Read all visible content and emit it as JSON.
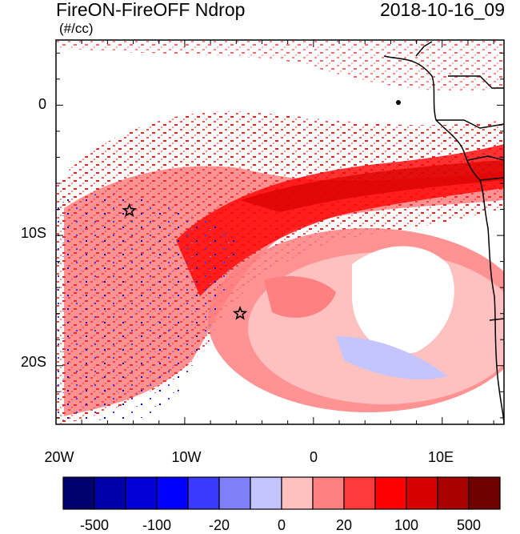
{
  "title_left": "FireON-FireOFF Ndrop",
  "title_right": "2018-10-16_09",
  "units": "(#/cc)",
  "map": {
    "lon_range": [
      -20,
      14.8
    ],
    "lat_range": [
      -24.5,
      5
    ],
    "y_ticks": [
      "0",
      "10S",
      "20S"
    ],
    "x_ticks": [
      "20W",
      "10W",
      "0",
      "10E"
    ],
    "markers": [
      {
        "name": "star-marker",
        "lon": -14.3,
        "lat": -8.1
      },
      {
        "name": "star-marker",
        "lon": -5.7,
        "lat": -16.0
      }
    ]
  },
  "colorbar": {
    "colors": [
      "#00006f",
      "#0000a8",
      "#0000d6",
      "#0000ff",
      "#3a3aff",
      "#8080f8",
      "#c4c4ff",
      "#ffc0c0",
      "#ff8080",
      "#ff3a3a",
      "#ff0000",
      "#d60000",
      "#a80000",
      "#700000"
    ],
    "labels": [
      "-500",
      "-100",
      "-20",
      "0",
      "20",
      "100",
      "500"
    ]
  }
}
